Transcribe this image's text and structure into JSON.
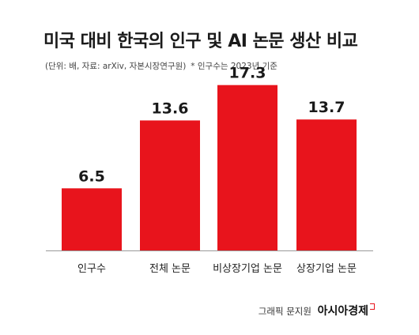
{
  "header": {
    "title": "미국 대비 한국의 인구 및 AI 논문 생산 비교",
    "source": "(단위: 배, 자료: arXiv, 자본시장연구원)",
    "note": "* 인구수는 2023년 기준"
  },
  "footer": {
    "credit": "그래픽 문지원",
    "brand": "아시아경제"
  },
  "chart_data": {
    "type": "bar",
    "title": "미국 대비 한국의 인구 및 AI 논문 생산 비교",
    "categories": [
      "인구수",
      "전체 논문",
      "비상장기업 논문",
      "상장기업 논문"
    ],
    "values": [
      6.5,
      13.6,
      17.3,
      13.7
    ],
    "value_labels": [
      "6.5",
      "13.6",
      "17.3",
      "13.7"
    ],
    "ylim": [
      0,
      20
    ],
    "bar_color": "#e8141c",
    "grid": false,
    "axis_color": "#999999"
  }
}
